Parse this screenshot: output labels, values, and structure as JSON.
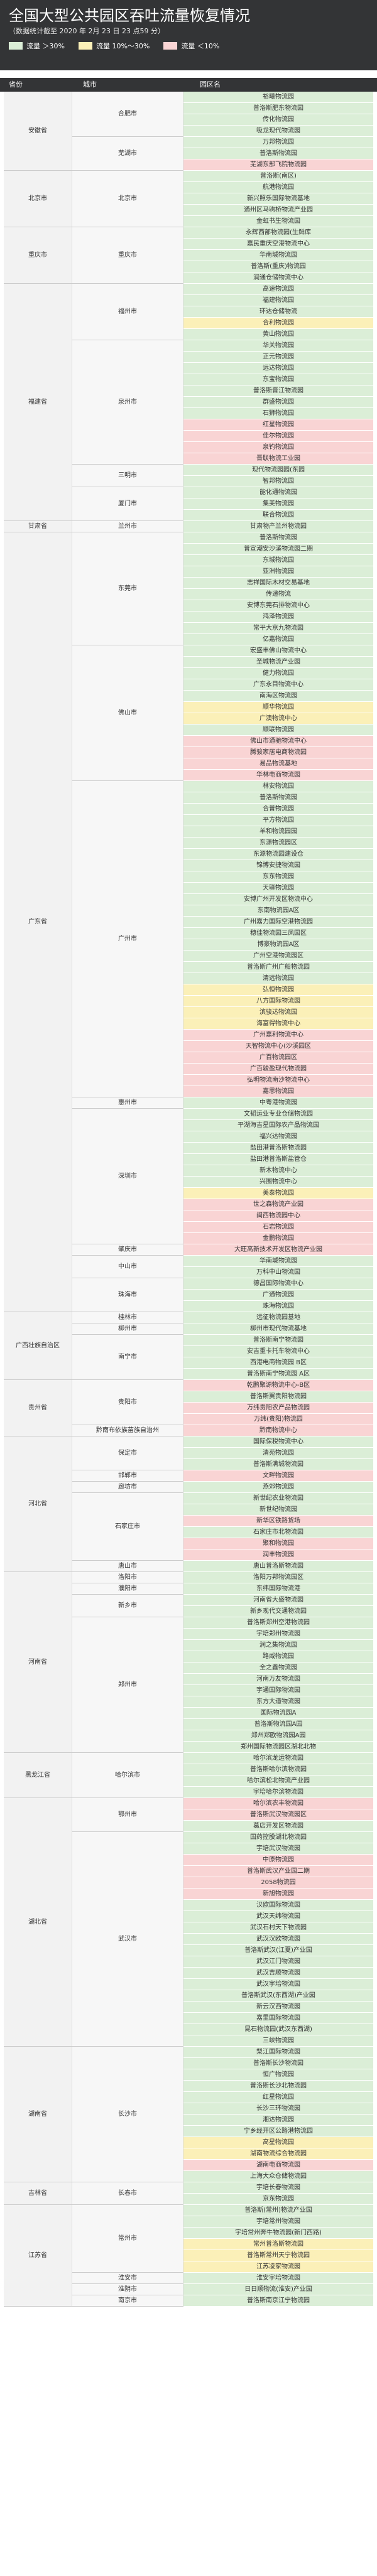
{
  "header": {
    "title": "全国大型公共园区吞吐流量恢复情况",
    "subtitle": "（数据统计截至 2020 年 2月 23 日 23 点59 分）",
    "legend": [
      {
        "label": "流量 ＞30%",
        "color": "#dbeed7"
      },
      {
        "label": "流量 10%～30%",
        "color": "#fbf0b8"
      },
      {
        "label": "流量 ＜10%",
        "color": "#f9d4d4"
      }
    ],
    "columns": [
      "省份",
      "城市",
      "园区名"
    ]
  },
  "status_colors": {
    "g": "#dbeed7",
    "y": "#fbf0b8",
    "r": "#f9d4d4"
  },
  "groups": [
    {
      "province": "安徽省",
      "cities": [
        {
          "name": "合肥市",
          "parks": [
            [
              "裕曦物流园",
              "g"
            ],
            [
              "普洛斯肥东物流园",
              "g"
            ],
            [
              "传化物流园",
              "g"
            ],
            [
              "吸龙现代物流园",
              "g"
            ]
          ]
        },
        {
          "name": "芜湖市",
          "parks": [
            [
              "万邦物流园",
              "g"
            ],
            [
              "普洛斯物流园",
              "g"
            ],
            [
              "芜湖东部飞院物流园",
              "r"
            ]
          ]
        }
      ]
    },
    {
      "province": "北京市",
      "cities": [
        {
          "name": "北京市",
          "parks": [
            [
              "普洛斯(南区)",
              "g"
            ],
            [
              "航港物流园",
              "g"
            ],
            [
              "新兴照乐国际物流基地",
              "g"
            ],
            [
              "通州区马驹桥物流产业园",
              "g"
            ],
            [
              "金虹书生物流园",
              "g"
            ]
          ]
        }
      ]
    },
    {
      "province": "重庆市",
      "cities": [
        {
          "name": "重庆市",
          "parks": [
            [
              "永辉西部物流园(生鲜库",
              "g"
            ],
            [
              "嘉民重庆空港物流中心",
              "g"
            ],
            [
              "华南城物流园",
              "g"
            ],
            [
              "普洛斯(重庆)物流园",
              "g"
            ],
            [
              "润通仓储物流中心",
              "g"
            ]
          ]
        }
      ]
    },
    {
      "province": "福建省",
      "cities": [
        {
          "name": "福州市",
          "parks": [
            [
              "高速物流园",
              "g"
            ],
            [
              "福建物流园",
              "g"
            ],
            [
              "环达仓储物流",
              "g"
            ],
            [
              "合利物流园",
              "y"
            ],
            [
              "黄山物流园",
              "g"
            ]
          ]
        },
        {
          "name": "泉州市",
          "parks": [
            [
              "华关物流园",
              "g"
            ],
            [
              "正元物流园",
              "g"
            ],
            [
              "远达物流园",
              "g"
            ],
            [
              "东宝物流园",
              "g"
            ],
            [
              "普洛斯晋江物流园",
              "g"
            ],
            [
              "群盛物流园",
              "g"
            ],
            [
              "石狮物流园",
              "g"
            ],
            [
              "红星物流园",
              "r"
            ],
            [
              "佳尔物流园",
              "r"
            ],
            [
              "泉钓物流园",
              "r"
            ],
            [
              "晋联物流工业园",
              "r"
            ]
          ]
        },
        {
          "name": "三明市",
          "parks": [
            [
              "现代物流园园(东园",
              "g"
            ],
            [
              "智邦物流园",
              "g"
            ]
          ]
        },
        {
          "name": "厦门市",
          "parks": [
            [
              "能化通物流园",
              "g"
            ],
            [
              "集美物流园",
              "g"
            ],
            [
              "联合物流园",
              "g"
            ]
          ]
        }
      ]
    },
    {
      "province": "甘肃省",
      "cities": [
        {
          "name": "兰州市",
          "parks": [
            [
              "甘肃物产兰州物流园",
              "g"
            ]
          ]
        }
      ]
    },
    {
      "province": "广东省",
      "cities": [
        {
          "name": "东莞市",
          "parks": [
            [
              "普洛斯物流园",
              "g"
            ],
            [
              "普宣潮安沙溪物流园二期",
              "g"
            ],
            [
              "东城物流园",
              "g"
            ],
            [
              "亚洲物流园",
              "g"
            ],
            [
              "志祥国际木材交易基地",
              "g"
            ],
            [
              "传递物流",
              "g"
            ],
            [
              "安博东莞石排物流中心",
              "g"
            ],
            [
              "鸿泽物流园",
              "g"
            ],
            [
              "常平大京九物流园",
              "g"
            ],
            [
              "亿嘉物流园",
              "g"
            ]
          ]
        },
        {
          "name": "佛山市",
          "parks": [
            [
              "宏盛丰佛山物流中心",
              "g"
            ],
            [
              "圣城物流产业园",
              "g"
            ],
            [
              "健力物流园",
              "g"
            ],
            [
              "广东永目物流中心",
              "g"
            ],
            [
              "南海区物流园",
              "g"
            ],
            [
              "顺华物流园",
              "y"
            ],
            [
              "广澳物流中心",
              "y"
            ],
            [
              "顺联物流园",
              "g"
            ],
            [
              "佛山市通驰物流中心",
              "r"
            ],
            [
              "腾骏家居电商物流园",
              "r"
            ],
            [
              "易品物流基地",
              "r"
            ],
            [
              "华林电商物流园",
              "r"
            ]
          ]
        },
        {
          "name": "广州市",
          "parks": [
            [
              "林安物流园",
              "g"
            ],
            [
              "普洛斯物流园",
              "g"
            ],
            [
              "合普物流园",
              "g"
            ],
            [
              "平方物流园",
              "g"
            ],
            [
              "羊和物流园园",
              "g"
            ],
            [
              "东源物流园区",
              "g"
            ],
            [
              "东源物流园建设仓",
              "g"
            ],
            [
              "锦博安捷物流园",
              "g"
            ],
            [
              "东东物流园",
              "g"
            ],
            [
              "天驿物流园",
              "g"
            ],
            [
              "安博广州开发区物流中心",
              "g"
            ],
            [
              "东南物流园A区",
              "g"
            ],
            [
              "广州嘉力国际空港物流园",
              "g"
            ],
            [
              "穗佳物流园三凤园区",
              "g"
            ],
            [
              "博豪物流园A区",
              "g"
            ],
            [
              "广州空港物流园区",
              "g"
            ],
            [
              "普洛斯广州广船物流园",
              "g"
            ],
            [
              "清远物流园",
              "g"
            ],
            [
              "弘恒物流园",
              "y"
            ],
            [
              "八方国际物流园",
              "y"
            ],
            [
              "滨骏达物流园",
              "y"
            ],
            [
              "海富得物流中心",
              "y"
            ],
            [
              "广州嘉利物流中心",
              "r"
            ],
            [
              "天智物流中心(沙溪园区",
              "r"
            ],
            [
              "广百物流园区",
              "r"
            ],
            [
              "广百骏盈现代物流园",
              "r"
            ],
            [
              "弘明物流南沙物流中心",
              "r"
            ],
            [
              "嘉思物流园",
              "r"
            ]
          ]
        },
        {
          "name": "惠州市",
          "parks": [
            [
              "中粤港物流园",
              "g"
            ]
          ]
        },
        {
          "name": "深圳市",
          "parks": [
            [
              "文韬运业专业仓储物流园",
              "g"
            ],
            [
              "平湖海吉星国际农产品物流园",
              "g"
            ],
            [
              "福兴达物流园",
              "g"
            ],
            [
              "盐田港普洛斯物流园",
              "g"
            ],
            [
              "盐田港普洛斯盐管仓",
              "g"
            ],
            [
              "新木物流中心",
              "g"
            ],
            [
              "兴围物流中心",
              "g"
            ],
            [
              "美泰物流园",
              "y"
            ],
            [
              "世之森物流产业园",
              "r"
            ],
            [
              "闽西物流园中心",
              "r"
            ],
            [
              "石岩物流园",
              "r"
            ],
            [
              "金鹏物流园",
              "r"
            ]
          ]
        },
        {
          "name": "肇庆市",
          "parks": [
            [
              "大旺高新技术开发区物流产业园",
              "r"
            ]
          ]
        },
        {
          "name": "中山市",
          "parks": [
            [
              "华南城物流园",
              "g"
            ],
            [
              "万科中山物流园",
              "g"
            ]
          ]
        },
        {
          "name": "珠海市",
          "parks": [
            [
              "德昌国际物流中心",
              "g"
            ],
            [
              "广通物流园",
              "g"
            ],
            [
              "珠海物流园",
              "g"
            ]
          ]
        }
      ]
    },
    {
      "province": "广西壮族自治区",
      "cities": [
        {
          "name": "桂林市",
          "parks": [
            [
              "远征物流园基地",
              "g"
            ]
          ]
        },
        {
          "name": "柳州市",
          "parks": [
            [
              "柳州市现代物流基地",
              "g"
            ]
          ]
        },
        {
          "name": "南宁市",
          "parks": [
            [
              "普洛斯南宁物流园",
              "g"
            ],
            [
              "安吉重卡托车物流中心",
              "g"
            ],
            [
              "西港电商物流园 B区",
              "g"
            ],
            [
              "普洛斯南宁物流园 A区",
              "g"
            ]
          ]
        }
      ]
    },
    {
      "province": "贵州省",
      "cities": [
        {
          "name": "贵阳市",
          "parks": [
            [
              "乾鹏聚源物流中心-B区",
              "r"
            ],
            [
              "普洛斯翼贵阳物流园",
              "g"
            ],
            [
              "万纬贵阳农产品物流园",
              "r"
            ],
            [
              "万纬(贵阳)物流园",
              "r"
            ]
          ]
        },
        {
          "name": "黔南布依族苗族自治州",
          "parks": [
            [
              "黔南物流中心",
              "r"
            ]
          ]
        }
      ]
    },
    {
      "province": "河北省",
      "cities": [
        {
          "name": "保定市",
          "parks": [
            [
              "国际保税物流中心",
              "g"
            ],
            [
              "清苑物流园",
              "g"
            ],
            [
              "普洛斯满城物流园",
              "g"
            ]
          ]
        },
        {
          "name": "邯郸市",
          "parks": [
            [
              "文畔物流园",
              "r"
            ]
          ]
        },
        {
          "name": "廊坊市",
          "parks": [
            [
              "燕郊物流园",
              "g"
            ]
          ]
        },
        {
          "name": "石家庄市",
          "parks": [
            [
              "新世纪农业物流园",
              "g"
            ],
            [
              "新世纪物流园",
              "g"
            ],
            [
              "新华区铁路货场",
              "r"
            ],
            [
              "石家庄市北物流园",
              "g"
            ],
            [
              "聚和物流园",
              "r"
            ],
            [
              "润丰物流园",
              "r"
            ]
          ]
        },
        {
          "name": "唐山市",
          "parks": [
            [
              "唐山普洛斯物流园",
              "g"
            ]
          ]
        }
      ]
    },
    {
      "province": "河南省",
      "cities": [
        {
          "name": "洛阳市",
          "parks": [
            [
              "洛阳万邦物流园区",
              "g"
            ]
          ]
        },
        {
          "name": "濮阳市",
          "parks": [
            [
              "东纬国际物流港",
              "g"
            ]
          ]
        },
        {
          "name": "新乡市",
          "parks": [
            [
              "河南省大盛物流园",
              "g"
            ],
            [
              "新乡现代交通物流园",
              "g"
            ]
          ]
        },
        {
          "name": "郑州市",
          "parks": [
            [
              "普洛斯郑州空港物流园",
              "g"
            ],
            [
              "宇培郑州物流园",
              "g"
            ],
            [
              "润之集物流园",
              "g"
            ],
            [
              "路威物流园",
              "g"
            ],
            [
              "全之鑫物流园",
              "g"
            ],
            [
              "河南万友物流园",
              "g"
            ],
            [
              "宇通国际物流园",
              "g"
            ],
            [
              "东方大道物流园",
              "g"
            ],
            [
              "国际物流园A",
              "g"
            ],
            [
              "普洛斯物流园A园",
              "g"
            ],
            [
              "郑州郑欧物流园A园",
              "g"
            ],
            [
              "郑州国际物流园区湖北北物",
              "g"
            ]
          ]
        }
      ]
    },
    {
      "province": "黑龙江省",
      "cities": [
        {
          "name": "哈尔滨市",
          "parks": [
            [
              "哈尔滨龙运物流园",
              "g"
            ],
            [
              "普洛斯哈尔滨物流园",
              "g"
            ],
            [
              "哈尔滨松北物流产业园",
              "g"
            ],
            [
              "宇培哈尔滨物流园",
              "g"
            ]
          ]
        }
      ]
    },
    {
      "province": "湖北省",
      "cities": [
        {
          "name": "鄂州市",
          "parks": [
            [
              "哈尔滨农丰物流园",
              "r"
            ],
            [
              "普洛斯武汉物流园区",
              "r"
            ],
            [
              "葛店开发区物流园",
              "g"
            ]
          ]
        },
        {
          "name": "武汉市",
          "parks": [
            [
              "国药控股湖北物流园",
              "g"
            ],
            [
              "宇培武汉物流园",
              "g"
            ],
            [
              "中原物流园",
              "r"
            ],
            [
              "普洛斯武汉产业园二期",
              "r"
            ],
            [
              "2058物流园",
              "r"
            ],
            [
              "新旭物流园",
              "r"
            ],
            [
              "汉欧国际物流园",
              "g"
            ],
            [
              "武汉天纬物流园",
              "g"
            ],
            [
              "武汉石村天下物流园",
              "g"
            ],
            [
              "武汉汉欧物流园",
              "g"
            ],
            [
              "普洛斯武汉(江夏)产业园",
              "g"
            ],
            [
              "武汉江门物流园",
              "g"
            ],
            [
              "武汉吉顺物流园",
              "g"
            ],
            [
              "武汉宇培物流园",
              "g"
            ],
            [
              "普洛斯武汉(东西湖)产业园",
              "g"
            ],
            [
              "新云汉西物流园",
              "g"
            ],
            [
              "嘉里国际物流园",
              "g"
            ],
            [
              "昆石物流园(武汉东西湖)",
              "g"
            ],
            [
              "三峡物流园",
              "g"
            ]
          ]
        }
      ]
    },
    {
      "province": "湖南省",
      "cities": [
        {
          "name": "长沙市",
          "parks": [
            [
              "梨江国际物流园",
              "g"
            ],
            [
              "普洛斯长沙物流园",
              "g"
            ],
            [
              "恒广物流园",
              "g"
            ],
            [
              "普洛斯长沙北物流园",
              "g"
            ],
            [
              "红星物流园",
              "g"
            ],
            [
              "长沙三环物流园",
              "g"
            ],
            [
              "湘达物流园",
              "g"
            ],
            [
              "宁乡经开区公路港物流园",
              "g"
            ],
            [
              "高星物流园",
              "y"
            ],
            [
              "湖南物流综合物流园",
              "y"
            ],
            [
              "湖南电商物流园",
              "r"
            ],
            [
              "上海大众仓储物流园",
              "g"
            ]
          ]
        }
      ]
    },
    {
      "province": "吉林省",
      "cities": [
        {
          "name": "长春市",
          "parks": [
            [
              "宇培长春物流园",
              "g"
            ],
            [
              "京东物流园",
              "g"
            ]
          ]
        }
      ]
    },
    {
      "province": "江苏省",
      "cities": [
        {
          "name": "常州市",
          "parks": [
            [
              "普洛斯(常州)物流产业园",
              "g"
            ],
            [
              "宇培常州物流园",
              "g"
            ],
            [
              "宇培常州奔牛物流园(新门西路)",
              "g"
            ],
            [
              "常州普洛斯物流园",
              "y"
            ],
            [
              "普洛斯常州天宁物流园",
              "y"
            ],
            [
              "江苏凌家物流园",
              "y"
            ]
          ]
        },
        {
          "name": "淮安市",
          "parks": [
            [
              "淮安宇培物流园",
              "g"
            ]
          ]
        },
        {
          "name": "淮阴市",
          "parks": [
            [
              "日日顺物流(淮安)产业园",
              "g"
            ]
          ]
        },
        {
          "name": "南京市",
          "parks": [
            [
              "普洛斯南京江宁物流园",
              "g"
            ]
          ]
        }
      ]
    }
  ]
}
